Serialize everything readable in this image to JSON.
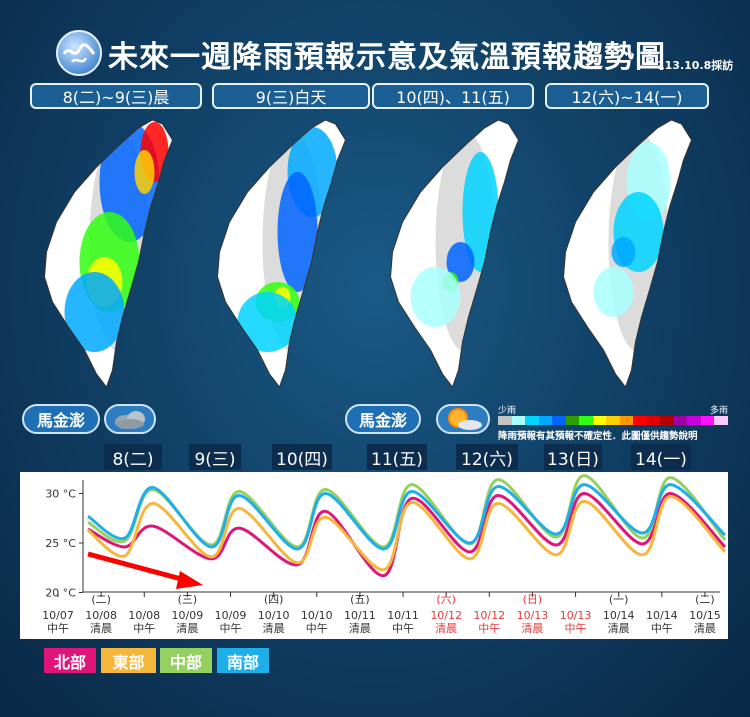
{
  "header": {
    "title": "未來一週降雨預報示意及氣溫預報趨勢圖",
    "interview_date": "113.10.8採訪"
  },
  "periods": [
    "8(二)~9(三)晨",
    "9(三)白天",
    "10(四)、11(五)",
    "12(六)~14(一)"
  ],
  "regions": {
    "left": "馬金澎",
    "right": "馬金澎",
    "left_icon": "cloud-icon",
    "right_icon": "sun-cloud-icon"
  },
  "rain_scale": {
    "low": "少雨",
    "high": "多雨",
    "note": "降雨預報有其預報不確定性．此圖僅供趨勢說明",
    "colors": [
      "#c4c4c4",
      "#a8ffff",
      "#00d4ff",
      "#00a8ff",
      "#0064ff",
      "#2e9e00",
      "#30ff10",
      "#ffff00",
      "#ffd000",
      "#ff9800",
      "#ff0000",
      "#e00000",
      "#b40000",
      "#a000a8",
      "#c800e0",
      "#ff10ff",
      "#ffc8ff"
    ]
  },
  "days": [
    "8(二)",
    "9(三)",
    "10(四)",
    "11(五)",
    "12(六)",
    "13(日)",
    "14(一)"
  ],
  "chart_data": {
    "type": "line",
    "ylabel_ticks": [
      "20 °C",
      "25 °C",
      "30 °C"
    ],
    "ylim": [
      20,
      31.5
    ],
    "x": [
      {
        "wd": "",
        "date": "10/07",
        "tod": "中午",
        "red": false
      },
      {
        "wd": "(二)",
        "date": "10/08",
        "tod": "清晨",
        "red": false
      },
      {
        "wd": "",
        "date": "10/08",
        "tod": "中午",
        "red": false
      },
      {
        "wd": "(三)",
        "date": "10/09",
        "tod": "清晨",
        "red": false
      },
      {
        "wd": "",
        "date": "10/09",
        "tod": "中午",
        "red": false
      },
      {
        "wd": "(四)",
        "date": "10/10",
        "tod": "清晨",
        "red": false
      },
      {
        "wd": "",
        "date": "10/10",
        "tod": "中午",
        "red": false
      },
      {
        "wd": "(五)",
        "date": "10/11",
        "tod": "清晨",
        "red": false
      },
      {
        "wd": "",
        "date": "10/11",
        "tod": "中午",
        "red": false
      },
      {
        "wd": "(六)",
        "date": "10/12",
        "tod": "清晨",
        "red": true
      },
      {
        "wd": "",
        "date": "10/12",
        "tod": "中午",
        "red": true
      },
      {
        "wd": "(日)",
        "date": "10/13",
        "tod": "清晨",
        "red": true
      },
      {
        "wd": "",
        "date": "10/13",
        "tod": "中午",
        "red": true
      },
      {
        "wd": "(一)",
        "date": "10/14",
        "tod": "清晨",
        "red": false
      },
      {
        "wd": "",
        "date": "10/14",
        "tod": "中午",
        "red": false
      },
      {
        "wd": "(二)",
        "date": "10/15",
        "tod": "清晨",
        "red": false
      }
    ],
    "series": [
      {
        "name": "北部",
        "color": "#e0157a",
        "values": [
          26.4,
          24.6,
          26.7,
          23.4,
          26.5,
          22.8,
          28.2,
          21.7,
          29.5,
          24.1,
          29.8,
          24.8,
          30.0,
          24.9,
          30.0,
          24.6
        ]
      },
      {
        "name": "東部",
        "color": "#f5b63c",
        "values": [
          26.3,
          23.7,
          29.0,
          23.6,
          28.5,
          23.0,
          27.6,
          22.3,
          29.1,
          23.4,
          29.0,
          23.8,
          29.2,
          23.8,
          29.7,
          24.1
        ]
      },
      {
        "name": "中部",
        "color": "#94d060",
        "values": [
          27.1,
          25.2,
          30.4,
          24.8,
          30.2,
          24.6,
          30.4,
          24.6,
          30.9,
          24.9,
          31.4,
          25.6,
          31.8,
          25.5,
          31.6,
          25.3
        ]
      },
      {
        "name": "南部",
        "color": "#1eaee8",
        "values": [
          27.7,
          25.5,
          30.6,
          24.6,
          29.8,
          24.4,
          30.0,
          24.4,
          30.2,
          25.0,
          30.7,
          25.9,
          30.9,
          26.0,
          30.9,
          25.8
        ]
      }
    ],
    "annotation": "red-arrow-downtrend"
  }
}
